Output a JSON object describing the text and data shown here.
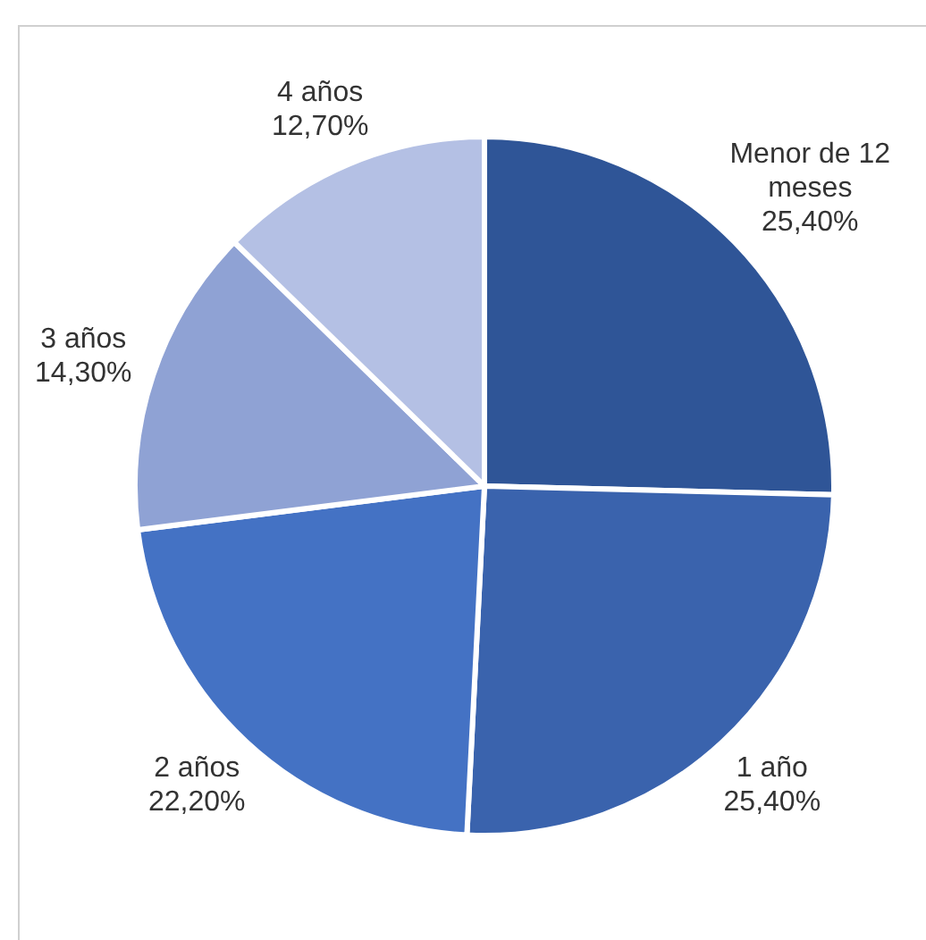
{
  "chart_data": {
    "type": "pie",
    "categories": [
      "Menor de 12 meses",
      "1 año",
      "2 años",
      "3 años",
      "4 años"
    ],
    "values": [
      25.4,
      25.4,
      22.2,
      14.3,
      12.7
    ],
    "value_labels": [
      "25,40%",
      "25,40%",
      "22,20%",
      "14,30%",
      "12,70%"
    ],
    "colors": [
      "#2f5597",
      "#3a63ad",
      "#4472c4",
      "#8fa2d4",
      "#b4c0e4"
    ],
    "legend": false
  }
}
